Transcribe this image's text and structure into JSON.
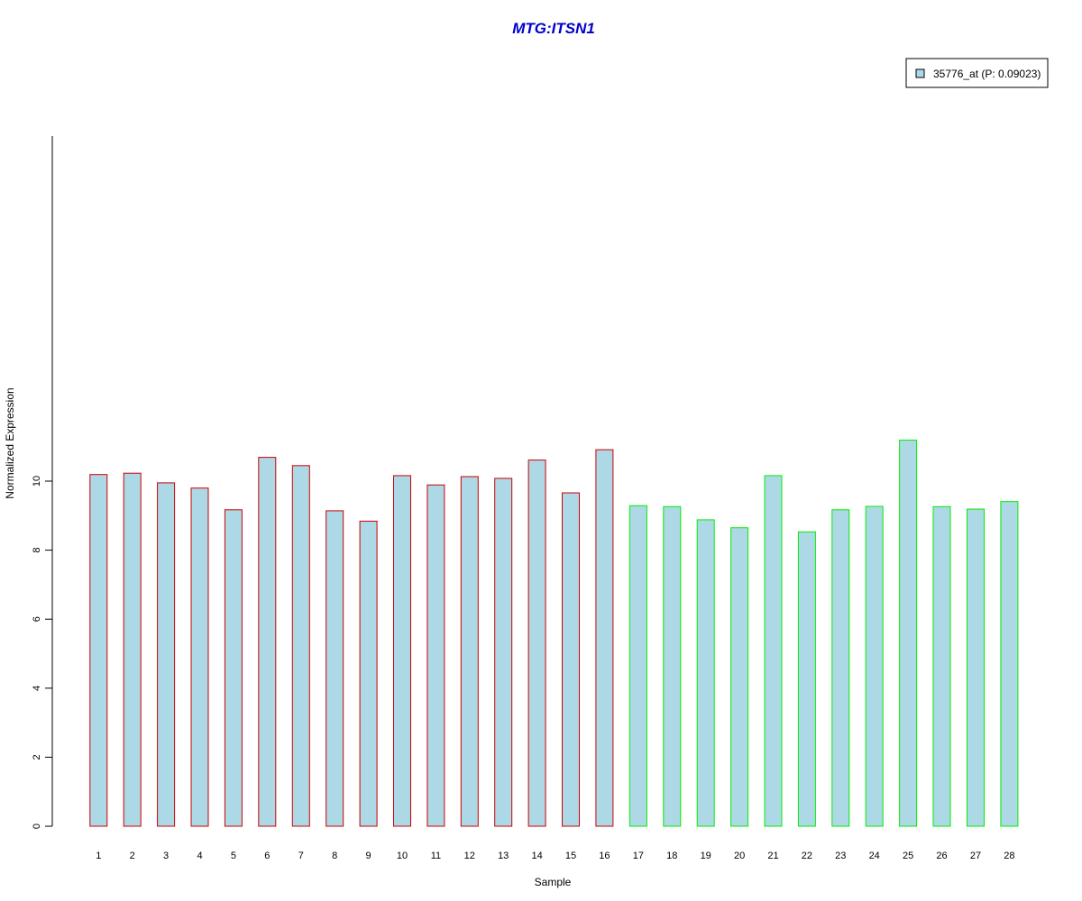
{
  "chart_data": {
    "type": "bar",
    "title": "MTG:ITSN1",
    "xlabel": "Sample",
    "ylabel": "Normalized Expression",
    "categories": [
      "1",
      "2",
      "3",
      "4",
      "5",
      "6",
      "7",
      "8",
      "9",
      "10",
      "11",
      "12",
      "13",
      "14",
      "15",
      "16",
      "17",
      "18",
      "19",
      "20",
      "21",
      "22",
      "23",
      "24",
      "25",
      "26",
      "27",
      "28"
    ],
    "values": [
      10.19,
      10.23,
      9.95,
      9.8,
      9.17,
      10.69,
      10.45,
      9.14,
      8.84,
      10.16,
      9.89,
      10.13,
      10.08,
      10.61,
      9.66,
      10.91,
      9.29,
      9.26,
      8.88,
      8.65,
      10.16,
      8.53,
      9.17,
      9.27,
      11.19,
      9.26,
      9.19,
      9.41
    ],
    "ylim": [
      0,
      11.19
    ],
    "yticks": [
      0,
      2,
      4,
      6,
      8,
      10
    ],
    "yticklabels": [
      "0",
      "2",
      "4",
      "6",
      "8",
      "10"
    ],
    "groups": [
      {
        "samples": 16,
        "border_color": "#cc0000"
      },
      {
        "samples": 12,
        "border_color": "#00ee00"
      }
    ],
    "bar_fill": "#add8e6",
    "grid": false,
    "legend": {
      "position": "top-right",
      "entries": [
        {
          "label": "35776_at (P: 0.09023)",
          "color": "#add8e6"
        }
      ]
    }
  }
}
